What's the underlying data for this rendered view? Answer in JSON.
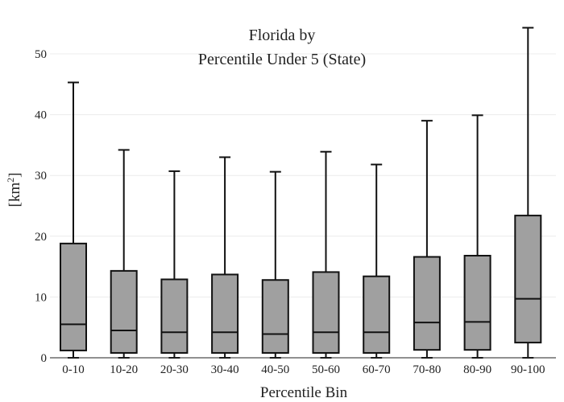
{
  "chart_data": {
    "type": "box",
    "title_line1": "Florida  by",
    "title_line2": "Percentile Under 5 (State)",
    "xlabel": "Percentile Bin",
    "ylabel_main": "[km",
    "ylabel_sup": "2",
    "ylabel_end": "]",
    "ylim": [
      0,
      55
    ],
    "yticks": [
      0,
      10,
      20,
      30,
      40,
      50
    ],
    "grid": true,
    "box_color": "#a0a0a0",
    "categories": [
      "0-10",
      "10-20",
      "20-30",
      "30-40",
      "40-50",
      "50-60",
      "60-70",
      "70-80",
      "80-90",
      "90-100"
    ],
    "boxes": [
      {
        "min": 0,
        "q1": 1.2,
        "median": 5.5,
        "q3": 18.8,
        "max": 45.3
      },
      {
        "min": 0,
        "q1": 0.8,
        "median": 4.5,
        "q3": 14.3,
        "max": 34.2
      },
      {
        "min": 0,
        "q1": 0.8,
        "median": 4.2,
        "q3": 12.9,
        "max": 30.7
      },
      {
        "min": 0,
        "q1": 0.8,
        "median": 4.2,
        "q3": 13.7,
        "max": 33.0
      },
      {
        "min": 0,
        "q1": 0.8,
        "median": 3.9,
        "q3": 12.8,
        "max": 30.6
      },
      {
        "min": 0,
        "q1": 0.8,
        "median": 4.2,
        "q3": 14.1,
        "max": 33.9
      },
      {
        "min": 0,
        "q1": 0.8,
        "median": 4.2,
        "q3": 13.4,
        "max": 31.8
      },
      {
        "min": 0,
        "q1": 1.3,
        "median": 5.8,
        "q3": 16.6,
        "max": 39.0
      },
      {
        "min": 0,
        "q1": 1.3,
        "median": 5.9,
        "q3": 16.8,
        "max": 39.9
      },
      {
        "min": 0,
        "q1": 2.5,
        "median": 9.7,
        "q3": 23.4,
        "max": 54.3
      }
    ]
  }
}
